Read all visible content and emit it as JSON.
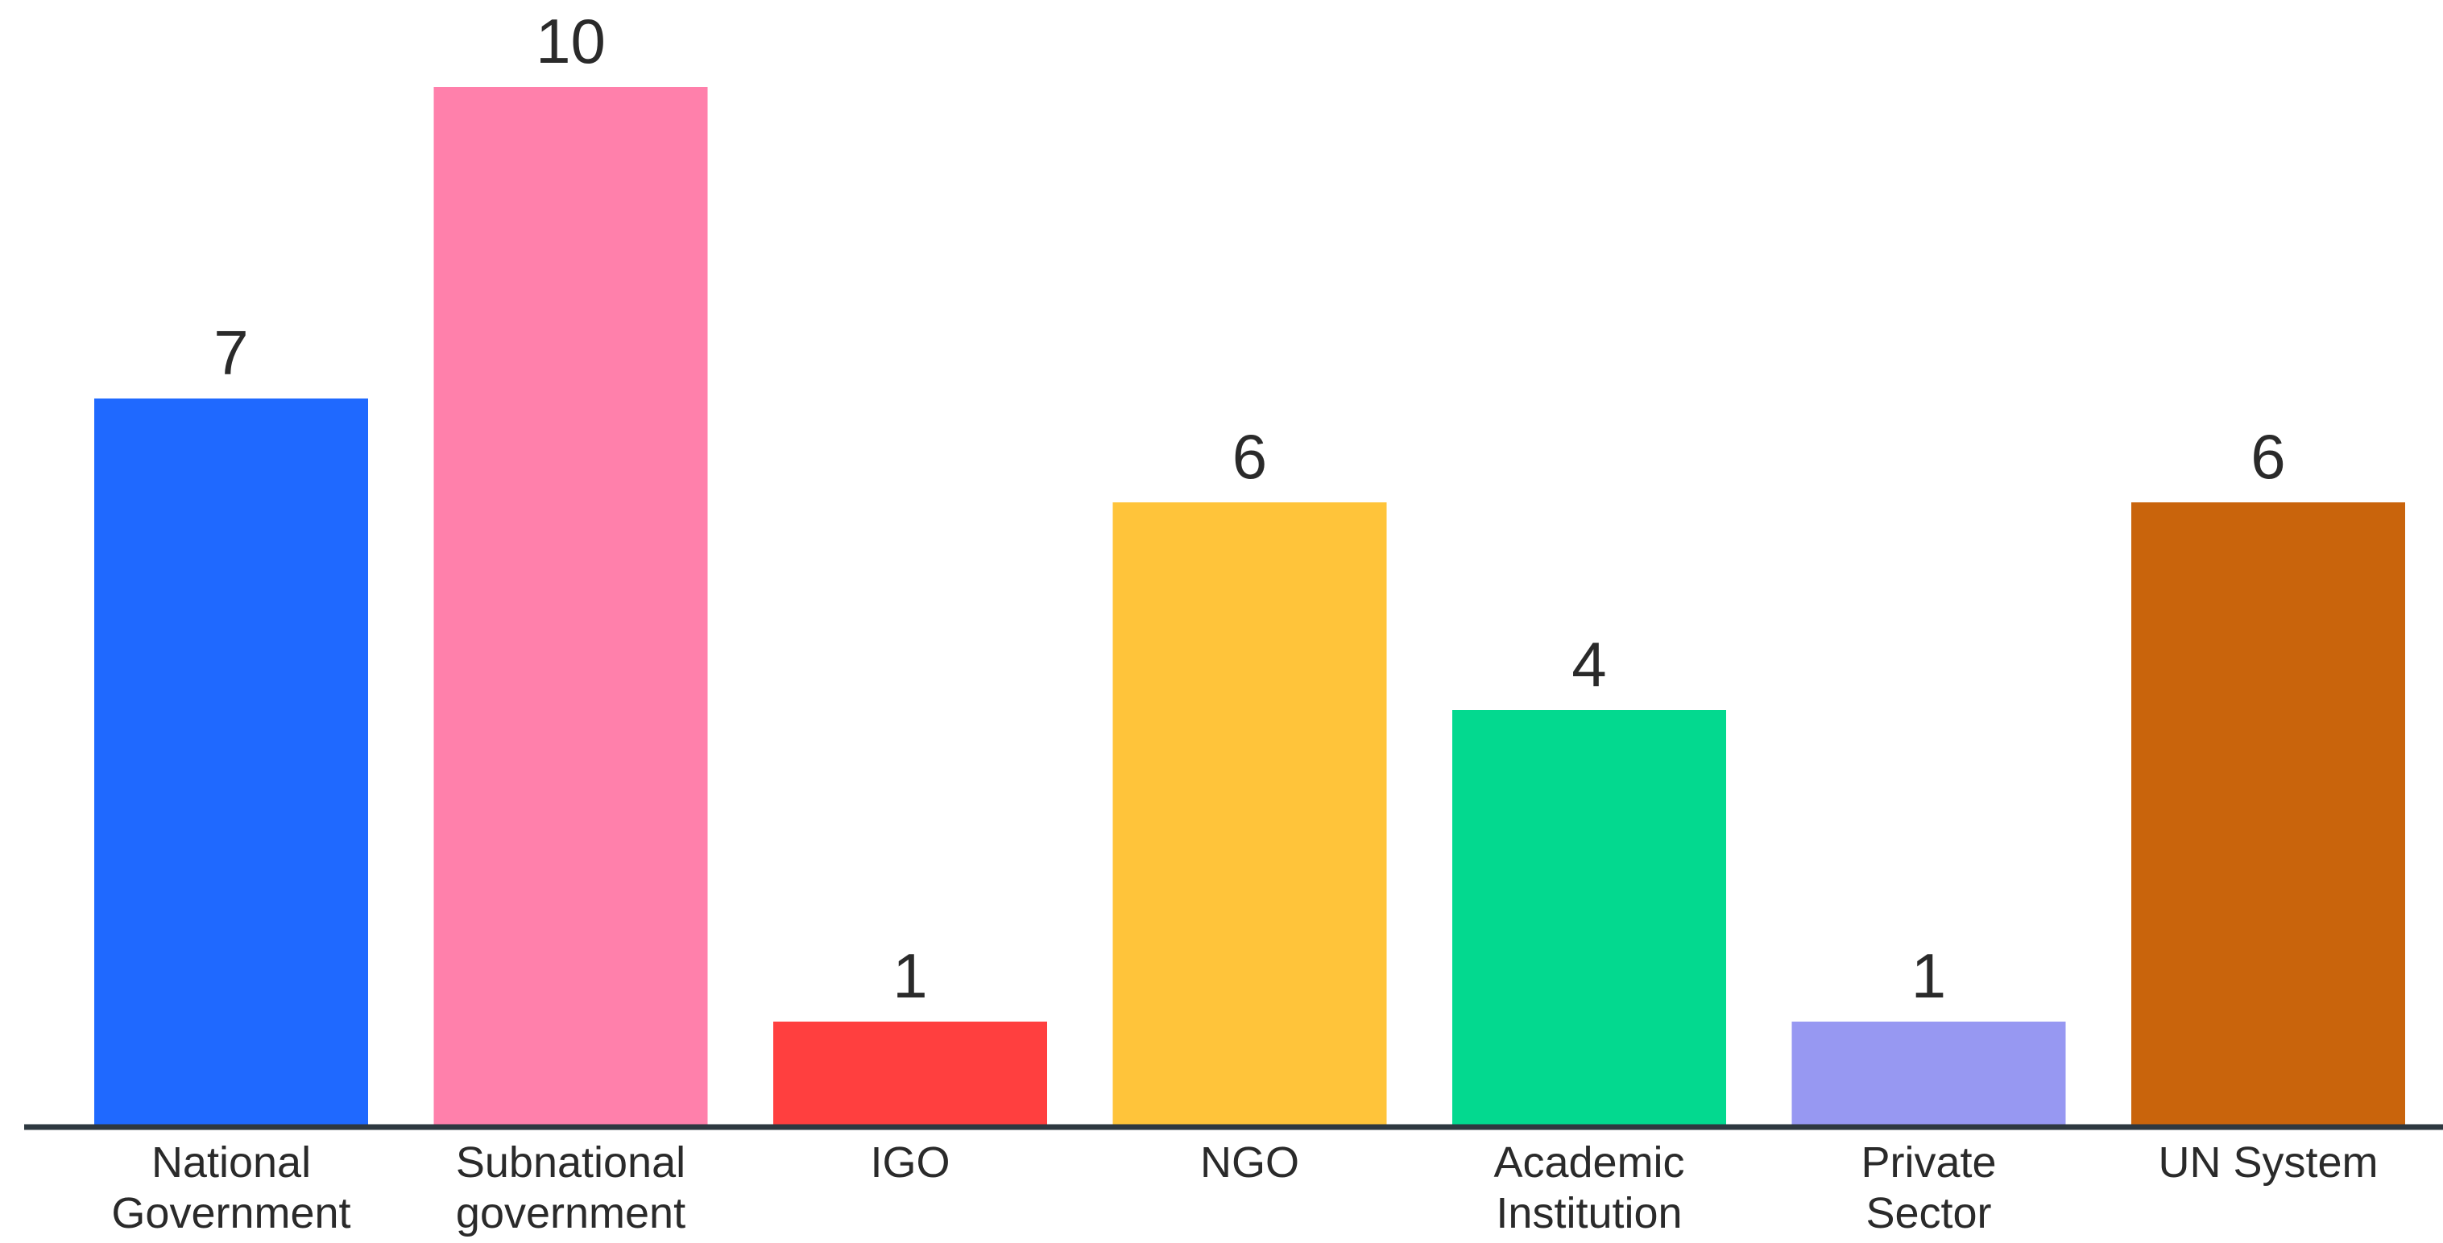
{
  "chart_data": {
    "type": "bar",
    "categories": [
      [
        "National",
        "Government"
      ],
      [
        "Subnational",
        "government"
      ],
      [
        "IGO"
      ],
      [
        "NGO"
      ],
      [
        "Academic",
        "Institution"
      ],
      [
        "Private",
        "Sector"
      ],
      [
        "UN System"
      ]
    ],
    "values": [
      7,
      10,
      1,
      6,
      4,
      1,
      6
    ],
    "colors": [
      "#1f69ff",
      "#ff80ab",
      "#ff3f3f",
      "#ffc43a",
      "#03d98f",
      "#9798f2",
      "#c9640c"
    ],
    "axis_color": "#2e3840",
    "ylim": [
      0,
      10
    ],
    "grid": false,
    "legend": "none",
    "title": "",
    "xlabel": "",
    "ylabel": ""
  }
}
